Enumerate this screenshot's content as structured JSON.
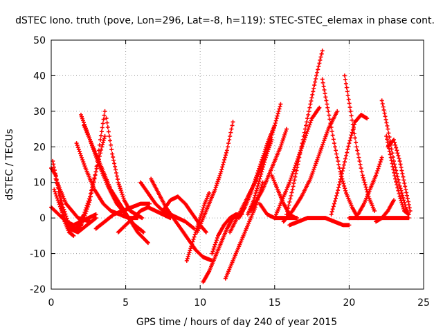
{
  "chart_data": {
    "type": "scatter",
    "title": "dSTEC Iono. truth (pove, Lon=296, Lat=-8, h=119): STEC-STEC_elemax in phase cont.",
    "xlabel": "GPS time / hours of day 240 of year 2015",
    "ylabel": "dSTEC  / TECUs",
    "xlim": [
      0,
      25
    ],
    "ylim": [
      -20,
      50
    ],
    "xticks": [
      0,
      5,
      10,
      15,
      20,
      25
    ],
    "yticks": [
      -20,
      -10,
      0,
      10,
      20,
      30,
      40,
      50
    ],
    "grid": true,
    "marker": "plus",
    "color": "#ff0000",
    "series": [
      {
        "x": [
          0.0,
          0.3,
          0.6,
          0.9,
          1.2,
          1.5
        ],
        "y": [
          14,
          12,
          5,
          -1,
          -4,
          -5
        ]
      },
      {
        "x": [
          0.1,
          0.4,
          0.8,
          1.2,
          1.6,
          2.0
        ],
        "y": [
          16,
          10,
          3,
          -2,
          -3,
          -2
        ]
      },
      {
        "x": [
          0.0,
          0.5,
          1.0,
          1.5,
          2.0,
          2.5,
          3.0
        ],
        "y": [
          3,
          1,
          -1,
          -2,
          -1,
          0,
          1
        ]
      },
      {
        "x": [
          0.2,
          0.7,
          1.2,
          1.8,
          2.4,
          3.0
        ],
        "y": [
          8,
          2,
          -3,
          -4,
          -2,
          0
        ]
      },
      {
        "x": [
          0.3,
          1.0,
          1.8,
          2.6
        ],
        "y": [
          11,
          4,
          0,
          -1
        ]
      },
      {
        "x": [
          1.7,
          2.3,
          2.9,
          3.5,
          4.0,
          4.6,
          5.2,
          5.8
        ],
        "y": [
          21,
          14,
          8,
          4,
          2,
          1,
          0,
          0
        ]
      },
      {
        "x": [
          2.0,
          2.6,
          3.2,
          3.8,
          4.4,
          5.0,
          5.6,
          6.2
        ],
        "y": [
          29,
          22,
          15,
          9,
          4,
          1,
          -2,
          -4
        ]
      },
      {
        "x": [
          2.2,
          2.8,
          3.4,
          4.0,
          4.6,
          5.2,
          5.8,
          6.5
        ],
        "y": [
          26,
          20,
          14,
          8,
          4,
          0,
          -4,
          -7
        ]
      },
      {
        "x": [
          1.8,
          2.2,
          2.6,
          3.0,
          3.4,
          3.6
        ],
        "y": [
          -2,
          1,
          6,
          13,
          20,
          23
        ]
      },
      {
        "x": [
          3.6,
          3.3,
          3.0,
          2.6,
          2.2,
          1.9,
          1.6,
          1.3
        ],
        "y": [
          30,
          22,
          13,
          5,
          0,
          -3,
          -3,
          -2
        ]
      },
      {
        "x": [
          3.7,
          4.1,
          4.5,
          4.9,
          5.3,
          5.7,
          6.1
        ],
        "y": [
          28,
          18,
          10,
          5,
          2,
          1,
          0
        ]
      },
      {
        "x": [
          3.0,
          3.6,
          4.2,
          4.8,
          5.4,
          6.0,
          6.6
        ],
        "y": [
          -3,
          -1,
          1,
          2,
          3,
          4,
          4
        ]
      },
      {
        "x": [
          4.5,
          5.0,
          5.5,
          6.0,
          6.5,
          7.0,
          7.5,
          8.0
        ],
        "y": [
          -4,
          -2,
          0,
          2,
          3,
          2,
          1,
          0
        ]
      },
      {
        "x": [
          6.0,
          6.5,
          7.0,
          7.5,
          8.0,
          8.5,
          9.0,
          9.6
        ],
        "y": [
          10,
          7,
          4,
          2,
          1,
          0,
          -1,
          -3
        ]
      },
      {
        "x": [
          6.7,
          7.2,
          7.7,
          8.2,
          8.7,
          9.2,
          9.7,
          10.2,
          10.8
        ],
        "y": [
          11,
          7,
          3,
          0,
          -3,
          -6,
          -9,
          -11,
          -12
        ]
      },
      {
        "x": [
          7.5,
          8.0,
          8.5,
          9.0,
          9.5,
          10.0,
          10.4
        ],
        "y": [
          2,
          5,
          6,
          4,
          1,
          -2,
          -4
        ]
      },
      {
        "x": [
          9.1,
          9.4,
          9.7,
          10.0,
          10.3,
          10.6
        ],
        "y": [
          -12,
          -8,
          -4,
          0,
          4,
          7
        ]
      },
      {
        "x": [
          9.8,
          10.2,
          10.6,
          11.0,
          11.4,
          11.8,
          12.2
        ],
        "y": [
          -4,
          0,
          4,
          8,
          13,
          19,
          27
        ]
      },
      {
        "x": [
          10.2,
          10.6,
          11.0,
          11.4,
          11.8,
          12.2,
          12.6
        ],
        "y": [
          -18,
          -15,
          -11,
          -7,
          -3,
          0,
          1
        ]
      },
      {
        "x": [
          10.8,
          11.2,
          11.6,
          12.0,
          12.4,
          12.8
        ],
        "y": [
          -10,
          -5,
          -2,
          0,
          1,
          1
        ]
      },
      {
        "x": [
          11.7,
          12.2,
          12.7,
          13.2,
          13.7,
          14.2
        ],
        "y": [
          -17,
          -12,
          -7,
          -2,
          3,
          10
        ]
      },
      {
        "x": [
          12.0,
          12.6,
          13.2,
          13.8,
          14.4,
          15.0,
          15.4
        ],
        "y": [
          -4,
          1,
          6,
          11,
          18,
          26,
          32
        ]
      },
      {
        "x": [
          12.6,
          13.0,
          13.4,
          13.8,
          14.2,
          14.6,
          15.0
        ],
        "y": [
          0,
          3,
          7,
          12,
          17,
          22,
          26
        ]
      },
      {
        "x": [
          13.2,
          13.6,
          14.0,
          14.4,
          14.8
        ],
        "y": [
          1,
          5,
          11,
          17,
          22
        ]
      },
      {
        "x": [
          13.4,
          13.8,
          14.2,
          14.6,
          15.0,
          15.4,
          15.8
        ],
        "y": [
          2,
          5,
          8,
          12,
          16,
          20,
          25
        ]
      },
      {
        "x": [
          14.0,
          14.5,
          15.0,
          15.5,
          16.0,
          16.5
        ],
        "y": [
          4,
          1,
          0,
          0,
          0,
          0
        ]
      },
      {
        "x": [
          14.8,
          15.2,
          15.6,
          16.0,
          16.4
        ],
        "y": [
          12,
          8,
          4,
          1,
          0
        ]
      },
      {
        "x": [
          15.0,
          15.5,
          16.0,
          16.5,
          17.0,
          17.5,
          18.0
        ],
        "y": [
          0,
          5,
          10,
          16,
          22,
          28,
          31
        ]
      },
      {
        "x": [
          15.8,
          16.2,
          16.6,
          17.0,
          17.4,
          17.8,
          18.2
        ],
        "y": [
          1,
          8,
          16,
          24,
          32,
          40,
          47
        ]
      },
      {
        "x": [
          15.6,
          16.2,
          16.8,
          17.4,
          18.0,
          18.6,
          19.2
        ],
        "y": [
          -1,
          2,
          6,
          11,
          18,
          25,
          30
        ]
      },
      {
        "x": [
          16.0,
          16.6,
          17.2,
          17.8,
          18.4,
          19.0,
          19.6,
          20.0
        ],
        "y": [
          -2,
          -1,
          0,
          0,
          0,
          -1,
          -2,
          -2
        ]
      },
      {
        "x": [
          18.2,
          18.6,
          19.0,
          19.4,
          19.8,
          20.2,
          20.6
        ],
        "y": [
          39,
          30,
          21,
          13,
          7,
          3,
          0
        ]
      },
      {
        "x": [
          18.8,
          19.2,
          19.6,
          20.0,
          20.4,
          20.8,
          21.2
        ],
        "y": [
          1,
          7,
          14,
          21,
          27,
          29,
          28
        ]
      },
      {
        "x": [
          19.7,
          20.1,
          20.5,
          20.9,
          21.3,
          21.7
        ],
        "y": [
          40,
          30,
          20,
          12,
          6,
          2
        ]
      },
      {
        "x": [
          20.0,
          20.6,
          21.2,
          21.8,
          22.4,
          23.0,
          23.6,
          24.0
        ],
        "y": [
          0,
          0,
          0,
          0,
          0,
          0,
          0,
          0
        ]
      },
      {
        "x": [
          20.6,
          21.0,
          21.4,
          21.8,
          22.2
        ],
        "y": [
          1,
          4,
          8,
          12,
          17
        ]
      },
      {
        "x": [
          22.2,
          22.6,
          23.0,
          23.4,
          23.8,
          24.0
        ],
        "y": [
          33,
          25,
          16,
          9,
          3,
          1
        ]
      },
      {
        "x": [
          22.5,
          22.8,
          23.1,
          23.4,
          23.7,
          24.0
        ],
        "y": [
          23,
          17,
          11,
          6,
          2,
          1
        ]
      },
      {
        "x": [
          22.6,
          23.0,
          23.4,
          23.8,
          24.1
        ],
        "y": [
          20,
          22,
          16,
          8,
          2
        ]
      },
      {
        "x": [
          21.8,
          22.2,
          22.6,
          23.0
        ],
        "y": [
          -1,
          0,
          2,
          5
        ]
      }
    ]
  }
}
